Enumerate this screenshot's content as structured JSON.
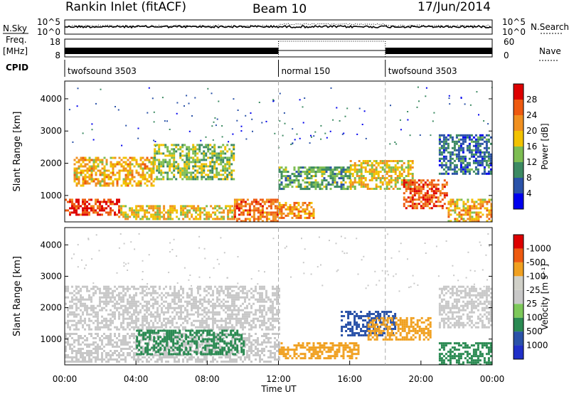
{
  "header": {
    "station": "Rankin Inlet (fitACF)",
    "beam": "Beam 10",
    "date": "17/Jun/2014"
  },
  "top_panel": {
    "nsky_label": "N.Sky",
    "nsearch_label": "N.Search",
    "freq_label_1": "Freq.",
    "freq_label_2": "[MHz]",
    "nave_label": "Nave",
    "cpid_label": "CPID",
    "noise_ticks_left": [
      "10^5",
      "10^0"
    ],
    "noise_ticks_right": [
      "10^5",
      "10^0"
    ],
    "freq_ticks": [
      "18",
      "8"
    ],
    "nave_ticks": [
      "60",
      "0"
    ],
    "cpid_segments": [
      {
        "name": "twofsound 3503",
        "start_h": 0,
        "end_h": 12
      },
      {
        "name": "normal 150",
        "start_h": 12,
        "end_h": 18
      },
      {
        "name": "twofsound 3503",
        "start_h": 18,
        "end_h": 24
      }
    ]
  },
  "colors": {
    "power_scale": [
      "#0000ee",
      "#2a52a8",
      "#3c8a62",
      "#7dbd52",
      "#f2c200",
      "#f09020",
      "#ee5a10",
      "#dd0000"
    ],
    "velocity_scale": [
      "#dd0000",
      "#ee5a10",
      "#f0a020",
      "#d0d0c8",
      "#c8c8c8",
      "#7dc85a",
      "#2a8a52",
      "#2a52a8",
      "#2030c8"
    ]
  },
  "chart_data": [
    {
      "type": "heatmap",
      "title": "",
      "xlabel": "Time UT",
      "ylabel": "Slant Range [km]",
      "xlim": [
        0,
        24
      ],
      "ylim": [
        180,
        4550
      ],
      "x_ticks": [
        "00:00",
        "04:00",
        "08:00",
        "12:00",
        "16:00",
        "20:00",
        "00:00"
      ],
      "y_ticks": [
        "1000",
        "2000",
        "3000",
        "4000"
      ],
      "colorbar": {
        "label": "Power [dB]",
        "min": 0,
        "max": 32,
        "ticks": [
          "4",
          "8",
          "12",
          "16",
          "20",
          "24",
          "28"
        ]
      },
      "regions": [
        {
          "x": [
            0.0,
            3.0
          ],
          "range_km": [
            400,
            900
          ],
          "value": 28
        },
        {
          "x": [
            0.5,
            5.0
          ],
          "range_km": [
            1300,
            2200
          ],
          "value": 20
        },
        {
          "x": [
            3.0,
            9.5
          ],
          "range_km": [
            250,
            700
          ],
          "value": 18
        },
        {
          "x": [
            5.0,
            9.5
          ],
          "range_km": [
            1500,
            2600
          ],
          "value": 14
        },
        {
          "x": [
            9.5,
            12.0
          ],
          "range_km": [
            200,
            900
          ],
          "value": 24
        },
        {
          "x": [
            12.0,
            16.0
          ],
          "range_km": [
            1200,
            1900
          ],
          "value": 12
        },
        {
          "x": [
            12.0,
            14.0
          ],
          "range_km": [
            300,
            800
          ],
          "value": 22
        },
        {
          "x": [
            16.0,
            19.5
          ],
          "range_km": [
            1200,
            2100
          ],
          "value": 18
        },
        {
          "x": [
            19.0,
            21.5
          ],
          "range_km": [
            600,
            1500
          ],
          "value": 26
        },
        {
          "x": [
            21.5,
            24.0
          ],
          "range_km": [
            200,
            900
          ],
          "value": 20
        },
        {
          "x": [
            21.0,
            24.0
          ],
          "range_km": [
            1700,
            2900
          ],
          "value": 8
        }
      ]
    },
    {
      "type": "heatmap",
      "title": "",
      "xlabel": "Time UT",
      "ylabel": "Slant Range [km]",
      "xlim": [
        0,
        24
      ],
      "ylim": [
        180,
        4550
      ],
      "x_ticks": [
        "00:00",
        "04:00",
        "08:00",
        "12:00",
        "16:00",
        "20:00",
        "00:00"
      ],
      "y_ticks": [
        "1000",
        "2000",
        "3000",
        "4000"
      ],
      "colorbar": {
        "label": "Velocity [m s⁻¹]",
        "ticks": [
          "1000",
          "500",
          "100",
          "25",
          "-25",
          "-100",
          "-500",
          "-1000"
        ]
      },
      "regions": [
        {
          "x": [
            0.0,
            12.0
          ],
          "range_km": [
            1300,
            2700
          ],
          "value": 0
        },
        {
          "x": [
            0.0,
            12.0
          ],
          "range_km": [
            300,
            1200
          ],
          "value": 0
        },
        {
          "x": [
            4.0,
            10.0
          ],
          "range_km": [
            500,
            1300
          ],
          "value": 150
        },
        {
          "x": [
            12.0,
            16.5
          ],
          "range_km": [
            400,
            900
          ],
          "value": -300
        },
        {
          "x": [
            15.5,
            18.5
          ],
          "range_km": [
            1100,
            1900
          ],
          "value": 800
        },
        {
          "x": [
            17.0,
            20.5
          ],
          "range_km": [
            1000,
            1700
          ],
          "value": -200
        },
        {
          "x": [
            21.0,
            24.0
          ],
          "range_km": [
            200,
            900
          ],
          "value": 150
        },
        {
          "x": [
            21.0,
            24.0
          ],
          "range_km": [
            1400,
            2700
          ],
          "value": 0
        }
      ]
    }
  ]
}
